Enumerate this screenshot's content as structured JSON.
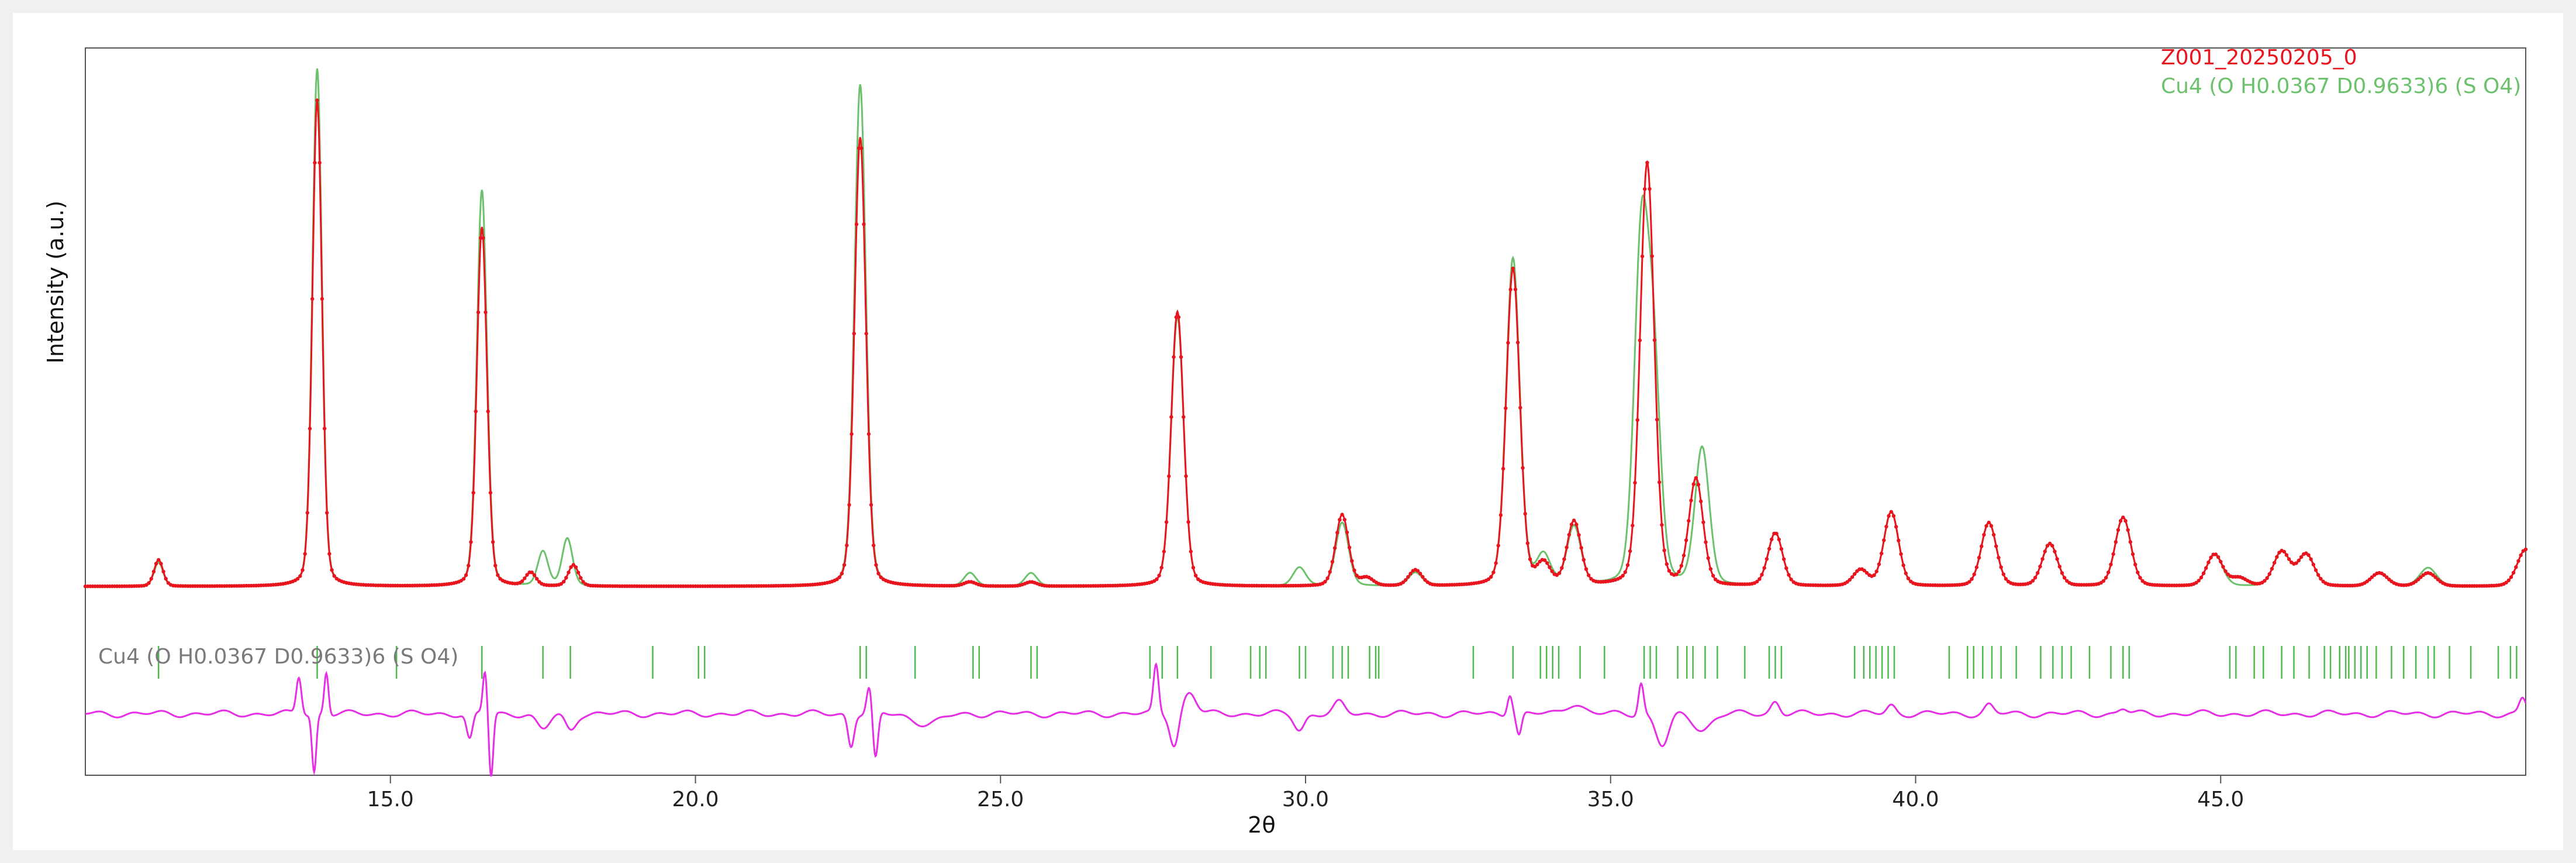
{
  "chart_data": {
    "type": "line",
    "xlabel": "2θ",
    "ylabel": "Intensity (a.u.)",
    "xlim": [
      10.0,
      50.0
    ],
    "ylim": [
      0,
      100
    ],
    "xticks": [
      "15.0",
      "20.0",
      "25.0",
      "30.0",
      "35.0",
      "40.0",
      "45.0"
    ],
    "legend_position": "top-right",
    "colors": {
      "observed": "#e8141e",
      "calculated": "#6cc26c",
      "difference": "#e62ee6",
      "reflections": "#4dbb4d",
      "phase_label": "#7a7a7a"
    },
    "series": [
      {
        "name": "Z001_20250205_0",
        "role": "observed",
        "peaks": [
          {
            "x": 11.2,
            "h": 5.0
          },
          {
            "x": 13.8,
            "h": 92.0
          },
          {
            "x": 16.5,
            "h": 68.0
          },
          {
            "x": 17.3,
            "h": 2.5
          },
          {
            "x": 18.0,
            "h": 4.0
          },
          {
            "x": 22.7,
            "h": 85.0
          },
          {
            "x": 24.5,
            "h": 0.8
          },
          {
            "x": 25.5,
            "h": 0.8
          },
          {
            "x": 27.9,
            "h": 52.0
          },
          {
            "x": 30.6,
            "h": 13.5
          },
          {
            "x": 31.0,
            "h": 1.5
          },
          {
            "x": 31.8,
            "h": 3.0
          },
          {
            "x": 33.4,
            "h": 60.0
          },
          {
            "x": 33.9,
            "h": 4.0
          },
          {
            "x": 34.4,
            "h": 12.0
          },
          {
            "x": 35.6,
            "h": 80.0
          },
          {
            "x": 36.4,
            "h": 20.0
          },
          {
            "x": 37.7,
            "h": 10.0
          },
          {
            "x": 39.1,
            "h": 3.0
          },
          {
            "x": 39.6,
            "h": 14.0
          },
          {
            "x": 41.2,
            "h": 12.0
          },
          {
            "x": 42.2,
            "h": 8.0
          },
          {
            "x": 43.4,
            "h": 13.0
          },
          {
            "x": 44.9,
            "h": 6.0
          },
          {
            "x": 45.3,
            "h": 1.5
          },
          {
            "x": 46.0,
            "h": 6.5
          },
          {
            "x": 46.4,
            "h": 6.0
          },
          {
            "x": 47.6,
            "h": 2.5
          },
          {
            "x": 48.4,
            "h": 2.5
          },
          {
            "x": 50.0,
            "h": 7.0
          }
        ]
      },
      {
        "name": "Cu4 (O H0.0367 D0.9633)6 (S O4)",
        "role": "calculated",
        "peaks": [
          {
            "x": 11.2,
            "h": 4.5
          },
          {
            "x": 13.8,
            "h": 98.0
          },
          {
            "x": 16.5,
            "h": 75.0
          },
          {
            "x": 17.5,
            "h": 6.5
          },
          {
            "x": 17.9,
            "h": 9.0
          },
          {
            "x": 22.7,
            "h": 95.0
          },
          {
            "x": 24.5,
            "h": 2.5
          },
          {
            "x": 25.5,
            "h": 2.5
          },
          {
            "x": 27.9,
            "h": 51.0
          },
          {
            "x": 29.9,
            "h": 3.5
          },
          {
            "x": 30.6,
            "h": 12.0
          },
          {
            "x": 31.8,
            "h": 2.5
          },
          {
            "x": 33.4,
            "h": 62.0
          },
          {
            "x": 33.9,
            "h": 5.5
          },
          {
            "x": 34.4,
            "h": 11.0
          },
          {
            "x": 35.5,
            "h": 62.0
          },
          {
            "x": 35.7,
            "h": 40.0
          },
          {
            "x": 36.5,
            "h": 26.0
          },
          {
            "x": 37.7,
            "h": 10.0
          },
          {
            "x": 39.1,
            "h": 3.0
          },
          {
            "x": 39.6,
            "h": 14.0
          },
          {
            "x": 41.2,
            "h": 12.0
          },
          {
            "x": 42.2,
            "h": 8.0
          },
          {
            "x": 43.4,
            "h": 13.0
          },
          {
            "x": 44.9,
            "h": 6.0
          },
          {
            "x": 46.0,
            "h": 6.5
          },
          {
            "x": 46.4,
            "h": 6.0
          },
          {
            "x": 47.6,
            "h": 2.5
          },
          {
            "x": 48.4,
            "h": 3.5
          },
          {
            "x": 50.0,
            "h": 7.0
          }
        ]
      }
    ],
    "reflections": {
      "phase": "Cu4 (O H0.0367 D0.9633)6 (S O4)",
      "positions": [
        11.2,
        13.8,
        15.1,
        16.5,
        17.5,
        17.95,
        19.3,
        20.05,
        20.15,
        22.7,
        22.8,
        23.6,
        24.55,
        24.65,
        25.5,
        25.6,
        27.45,
        27.65,
        27.9,
        28.45,
        29.1,
        29.25,
        29.35,
        29.9,
        30.0,
        30.45,
        30.6,
        30.7,
        31.05,
        31.15,
        31.2,
        32.75,
        33.4,
        33.85,
        33.95,
        34.05,
        34.15,
        34.5,
        34.9,
        35.55,
        35.65,
        35.75,
        36.1,
        36.25,
        36.35,
        36.55,
        36.75,
        37.2,
        37.6,
        37.7,
        37.8,
        39.0,
        39.15,
        39.25,
        39.35,
        39.45,
        39.55,
        39.65,
        40.55,
        40.85,
        40.95,
        41.1,
        41.25,
        41.4,
        41.65,
        42.05,
        42.25,
        42.4,
        42.55,
        42.85,
        43.2,
        43.4,
        43.5,
        45.15,
        45.25,
        45.55,
        45.7,
        46.0,
        46.2,
        46.45,
        46.7,
        46.8,
        46.95,
        47.05,
        47.1,
        47.2,
        47.3,
        47.4,
        47.55,
        47.8,
        48.0,
        48.2,
        48.4,
        48.5,
        48.75,
        49.1,
        49.55,
        49.75,
        49.85
      ]
    },
    "difference": {
      "role": "difference",
      "features": [
        {
          "x": 13.5,
          "d": 3.5,
          "w": 0.06
        },
        {
          "x": 13.75,
          "d": -5.5,
          "w": 0.05
        },
        {
          "x": 13.95,
          "d": 4.0,
          "w": 0.05
        },
        {
          "x": 16.3,
          "d": -2.5,
          "w": 0.07
        },
        {
          "x": 16.55,
          "d": 4.0,
          "w": 0.05
        },
        {
          "x": 16.65,
          "d": -6.0,
          "w": 0.05
        },
        {
          "x": 17.5,
          "d": -1.5,
          "w": 0.15
        },
        {
          "x": 17.95,
          "d": -1.5,
          "w": 0.12
        },
        {
          "x": 22.55,
          "d": -3.0,
          "w": 0.07
        },
        {
          "x": 22.85,
          "d": 2.5,
          "w": 0.06
        },
        {
          "x": 22.95,
          "d": -4.5,
          "w": 0.06
        },
        {
          "x": 23.8,
          "d": -1.0,
          "w": 0.3
        },
        {
          "x": 27.55,
          "d": 4.5,
          "w": 0.06
        },
        {
          "x": 27.85,
          "d": -3.0,
          "w": 0.1
        },
        {
          "x": 28.1,
          "d": 2.0,
          "w": 0.15
        },
        {
          "x": 29.9,
          "d": -1.5,
          "w": 0.12
        },
        {
          "x": 30.55,
          "d": 1.0,
          "w": 0.12
        },
        {
          "x": 33.35,
          "d": 2.0,
          "w": 0.06
        },
        {
          "x": 33.5,
          "d": -2.0,
          "w": 0.06
        },
        {
          "x": 34.4,
          "d": 1.0,
          "w": 0.2
        },
        {
          "x": 35.5,
          "d": 3.0,
          "w": 0.06
        },
        {
          "x": 35.85,
          "d": -3.0,
          "w": 0.15
        },
        {
          "x": 36.5,
          "d": -1.5,
          "w": 0.2
        },
        {
          "x": 37.7,
          "d": 1.2,
          "w": 0.1
        },
        {
          "x": 39.6,
          "d": 0.8,
          "w": 0.1
        },
        {
          "x": 41.2,
          "d": 0.8,
          "w": 0.1
        },
        {
          "x": 43.4,
          "d": 0.5,
          "w": 0.1
        },
        {
          "x": 49.95,
          "d": 1.5,
          "w": 0.08
        }
      ]
    }
  }
}
